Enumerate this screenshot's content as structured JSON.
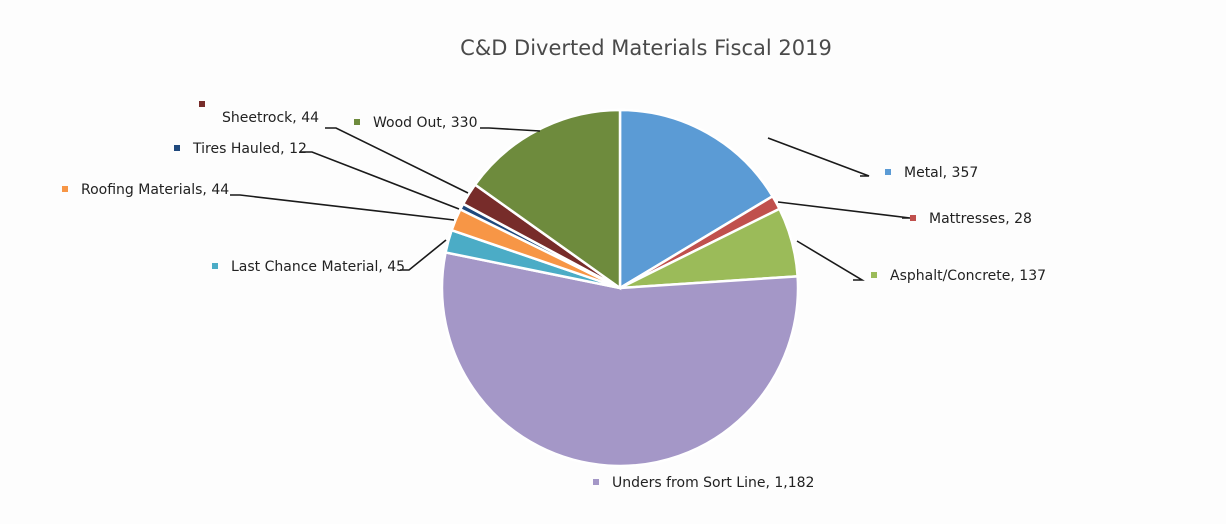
{
  "chart_data": {
    "type": "pie",
    "title": "C&D Diverted Materials Fiscal 2019",
    "slices": [
      {
        "label": "Metal",
        "value": 357,
        "value_text": "357",
        "color": "#5b9bd5"
      },
      {
        "label": "Mattresses",
        "value": 28,
        "value_text": "28",
        "color": "#c0504d"
      },
      {
        "label": "Asphalt/Concrete",
        "value": 137,
        "value_text": "137",
        "color": "#9bbb59"
      },
      {
        "label": "Unders from Sort Line",
        "value": 1182,
        "value_text": "1,182",
        "color": "#a497c7"
      },
      {
        "label": "Last Chance Material",
        "value": 45,
        "value_text": "45",
        "color": "#4bacc6"
      },
      {
        "label": "Roofing Materials",
        "value": 44,
        "value_text": "44",
        "color": "#f79646"
      },
      {
        "label": "Tires Hauled",
        "value": 12,
        "value_text": "12",
        "color": "#1f497d"
      },
      {
        "label": "Sheetrock",
        "value": 44,
        "value_text": "44",
        "color": "#772c2a"
      },
      {
        "label": "Wood Out",
        "value": 330,
        "value_text": "330",
        "color": "#6e8b3d"
      }
    ],
    "legend": "data labels with leader lines"
  }
}
